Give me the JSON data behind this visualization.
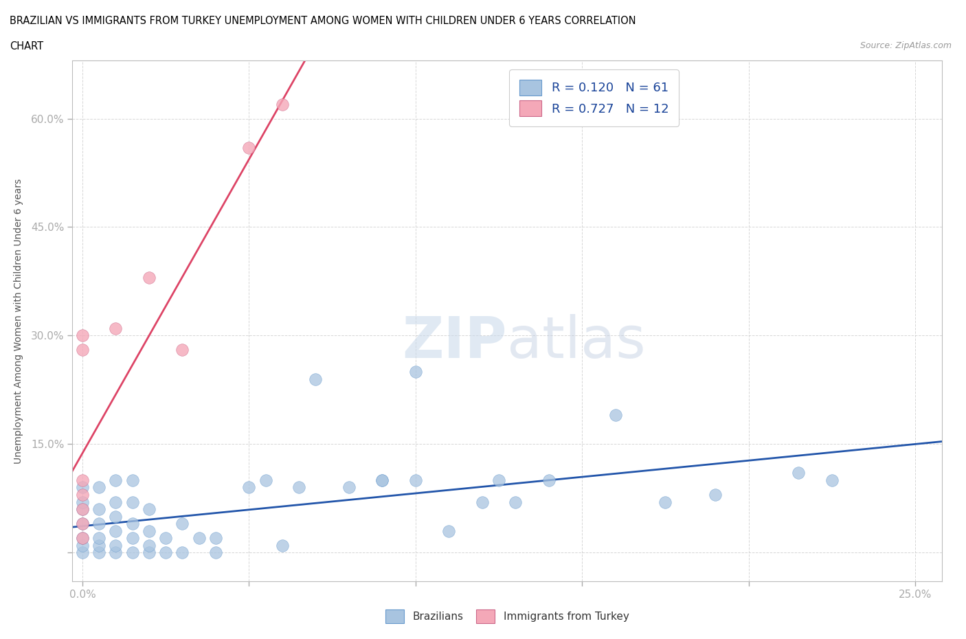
{
  "title_line1": "BRAZILIAN VS IMMIGRANTS FROM TURKEY UNEMPLOYMENT AMONG WOMEN WITH CHILDREN UNDER 6 YEARS CORRELATION",
  "title_line2": "CHART",
  "source": "Source: ZipAtlas.com",
  "ylabel": "Unemployment Among Women with Children Under 6 years",
  "xlim": [
    -0.003,
    0.258
  ],
  "ylim": [
    -0.04,
    0.68
  ],
  "xticks": [
    0.0,
    0.05,
    0.1,
    0.15,
    0.2,
    0.25
  ],
  "xticklabels": [
    "0.0%",
    "",
    "",
    "",
    "",
    "25.0%"
  ],
  "yticks": [
    0.0,
    0.15,
    0.3,
    0.45,
    0.6
  ],
  "yticklabels": [
    "",
    "15.0%",
    "30.0%",
    "45.0%",
    "60.0%"
  ],
  "brazilian_color": "#a8c4e0",
  "turkey_color": "#f4a8b8",
  "brazil_line_color": "#2255aa",
  "turkey_line_color": "#dd4466",
  "r_brazil": 0.12,
  "n_brazil": 61,
  "r_turkey": 0.727,
  "n_turkey": 12,
  "legend_label_brazil": "Brazilians",
  "legend_label_turkey": "Immigrants from Turkey",
  "watermark_zip": "ZIP",
  "watermark_atlas": "atlas",
  "brazilian_x": [
    0.0,
    0.0,
    0.0,
    0.0,
    0.0,
    0.0,
    0.0,
    0.005,
    0.005,
    0.005,
    0.005,
    0.005,
    0.005,
    0.01,
    0.01,
    0.01,
    0.01,
    0.01,
    0.01,
    0.015,
    0.015,
    0.015,
    0.015,
    0.015,
    0.02,
    0.02,
    0.02,
    0.02,
    0.025,
    0.025,
    0.03,
    0.03,
    0.035,
    0.04,
    0.04,
    0.05,
    0.055,
    0.06,
    0.065,
    0.07,
    0.08,
    0.09,
    0.09,
    0.1,
    0.1,
    0.11,
    0.12,
    0.125,
    0.13,
    0.14,
    0.16,
    0.175,
    0.19,
    0.215,
    0.225
  ],
  "brazilian_y": [
    0.0,
    0.01,
    0.02,
    0.04,
    0.06,
    0.07,
    0.09,
    0.0,
    0.01,
    0.02,
    0.04,
    0.06,
    0.09,
    0.0,
    0.01,
    0.03,
    0.05,
    0.07,
    0.1,
    0.0,
    0.02,
    0.04,
    0.07,
    0.1,
    0.0,
    0.01,
    0.03,
    0.06,
    0.0,
    0.02,
    0.0,
    0.04,
    0.02,
    0.0,
    0.02,
    0.09,
    0.1,
    0.01,
    0.09,
    0.24,
    0.09,
    0.1,
    0.1,
    0.1,
    0.25,
    0.03,
    0.07,
    0.1,
    0.07,
    0.1,
    0.19,
    0.07,
    0.08,
    0.11,
    0.1
  ],
  "turkey_x": [
    0.0,
    0.0,
    0.0,
    0.0,
    0.0,
    0.0,
    0.0,
    0.01,
    0.02,
    0.03,
    0.05,
    0.06
  ],
  "turkey_y": [
    0.02,
    0.04,
    0.06,
    0.08,
    0.1,
    0.28,
    0.3,
    0.31,
    0.38,
    0.28,
    0.56,
    0.62
  ]
}
